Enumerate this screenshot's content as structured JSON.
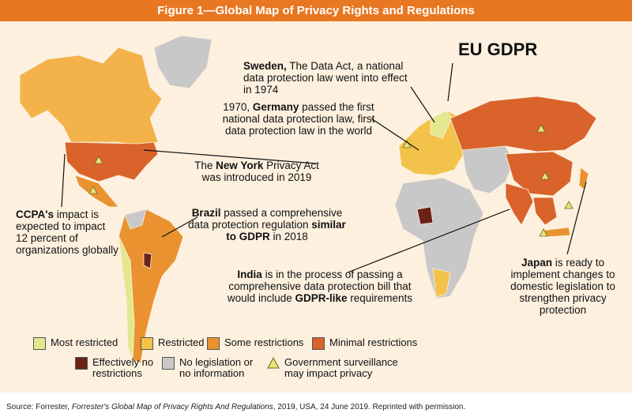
{
  "title": "Figure 1—Global Map of Privacy Rights and Regulations",
  "eu_label": "EU GDPR",
  "annotations": [
    {
      "parts": [
        {
          "text": "Sweden,",
          "bold": true
        },
        {
          "text": " The Data Act, a national data protection law went into effect in 1974"
        }
      ]
    },
    {
      "parts": [
        {
          "text": "1970, "
        },
        {
          "text": "Germany",
          "bold": true
        },
        {
          "text": " passed the first national data protection law, first data protection law in the world"
        }
      ]
    },
    {
      "parts": [
        {
          "text": "The "
        },
        {
          "text": "New York",
          "bold": true
        },
        {
          "text": " Privacy Act was introduced in 2019"
        }
      ]
    },
    {
      "parts": [
        {
          "text": "CCPA's",
          "bold": true
        },
        {
          "text": " impact is expected to impact 12 percent of organizations globally"
        }
      ]
    },
    {
      "parts": [
        {
          "text": "Brazil",
          "bold": true
        },
        {
          "text": " passed a comprehensive data protection regulation "
        },
        {
          "text": "similar to GDPR",
          "bold": true
        },
        {
          "text": " in 2018"
        }
      ]
    },
    {
      "parts": [
        {
          "text": "India",
          "bold": true
        },
        {
          "text": " is in the process of passing a comprehensive data protection bill that would include "
        },
        {
          "text": "GDPR-like",
          "bold": true
        },
        {
          "text": " requirements"
        }
      ]
    },
    {
      "parts": [
        {
          "text": "Japan",
          "bold": true
        },
        {
          "text": " is ready to implement changes to domestic legislation to strengthen privacy protection"
        }
      ]
    }
  ],
  "legend": [
    {
      "label": "Most restricted",
      "color": "#e3e88f"
    },
    {
      "label": "Restricted",
      "color": "#f3c24a"
    },
    {
      "label": "Some restrictions",
      "color": "#e9922f"
    },
    {
      "label": "Minimal restrictions",
      "color": "#d9632a"
    },
    {
      "label": "Effectively no restrictions",
      "color": "#6b2216"
    },
    {
      "label": "No legislation or no information",
      "color": "#c8c8c8"
    }
  ],
  "surveillance_legend": {
    "label": "Government surveillance may impact privacy",
    "color": "#e8e47a"
  },
  "source": {
    "parts": [
      {
        "text": "Source: Forrester, "
      },
      {
        "text": "Forrester's Global Map of Privacy Rights And Regulations",
        "italic": true
      },
      {
        "text": ", 2019, USA, 24 June 2019. Reprinted with permission."
      }
    ]
  }
}
